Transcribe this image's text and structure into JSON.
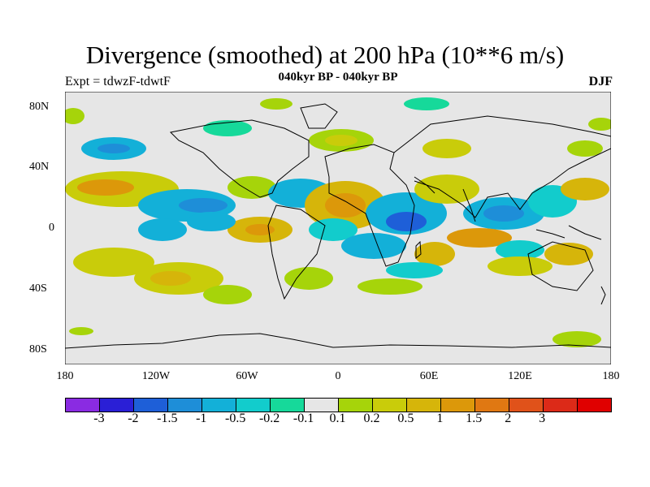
{
  "title": "Divergence (smoothed) at 200 hPa (10**6 m/s)",
  "subtitle": "040kyr BP - 040kyr BP",
  "expt_label": "Expt = tdwzF-tdwtF",
  "season": "DJF",
  "map": {
    "lat_ticks": [
      "80N",
      "40N",
      "0",
      "40S",
      "80S"
    ],
    "lon_ticks": [
      "180",
      "120W",
      "60W",
      "0",
      "60E",
      "120E",
      "180"
    ],
    "background_color": "#e6e6e6"
  },
  "colorbar": {
    "colors": [
      "#8a2be2",
      "#2a1fd6",
      "#1e5fd8",
      "#1e8ed8",
      "#13b0d8",
      "#12cccc",
      "#16d99a",
      "#e6e6e6",
      "#a6d40a",
      "#c9cc0a",
      "#d6b50a",
      "#dc980a",
      "#e07812",
      "#e0521a",
      "#dc2a18",
      "#e00000"
    ],
    "labels": [
      "-3",
      "-2",
      "-1.5",
      "-1",
      "-0.5",
      "-0.2",
      "-0.1",
      "0.1",
      "0.2",
      "0.5",
      "1",
      "1.5",
      "2",
      "3"
    ]
  }
}
